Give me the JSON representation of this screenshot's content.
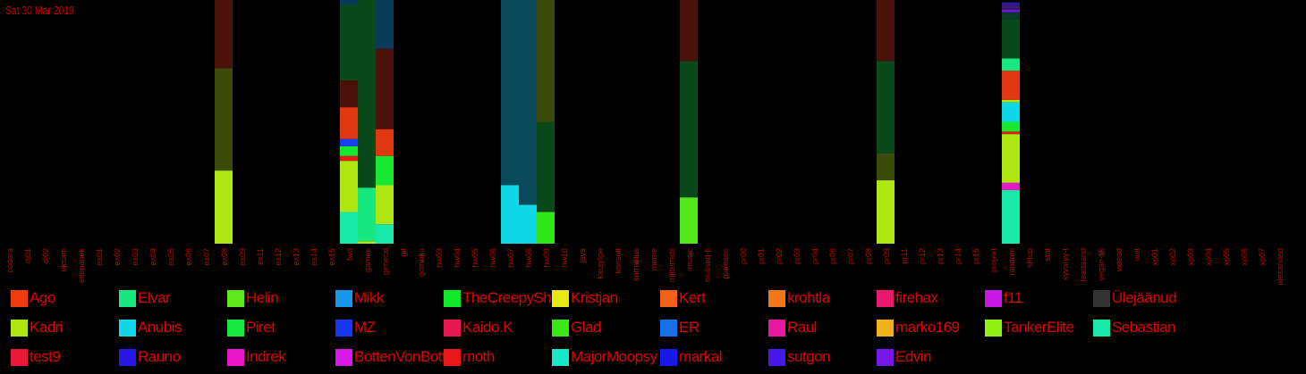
{
  "date_label": "Sat 30 Mar 2019",
  "chart_data": {
    "type": "bar",
    "stacked": true,
    "categories": [
      "codera",
      "dj01",
      "dj02",
      "eksam",
      "eltepanek",
      "ex01",
      "ex02",
      "ex03",
      "ex04",
      "ex05",
      "ex06",
      "ex07",
      "ex08",
      "ex09",
      "ex11",
      "ex12",
      "ex13",
      "ex14",
      "ex15",
      "fwd",
      "games",
      "general",
      "git",
      "gomoku",
      "hw03",
      "hw04",
      "hw05",
      "hw06",
      "hw07",
      "hw08",
      "hw09",
      "hw10",
      "java",
      "kaugõpe",
      "konsult",
      "korraldus",
      "meme",
      "mittemidii",
      "music",
      "olulised-fi",
      "palmaeri",
      "pr00",
      "pr01",
      "pr02",
      "pr03",
      "pr04",
      "pr06",
      "pr07",
      "pr08",
      "pr09",
      "pr11",
      "pr12",
      "pr13",
      "pr14",
      "pr15",
      "projekt",
      "random",
      "setup",
      "stat",
      "syvaryy-t",
      "teadaand",
      "vegan-tik",
      "videod",
      "wat",
      "xp01",
      "xp02",
      "xp03",
      "xp04",
      "xp05",
      "xp06",
      "xp07",
      "ülesanded"
    ],
    "ylim": [
      0,
      100
    ],
    "bars": [
      {
        "category": "ex08",
        "segments": [
          {
            "c": "#aee612",
            "v": 30
          },
          {
            "c": "#3c4a0a",
            "v": 42
          },
          {
            "c": "#4a1208",
            "v": 28
          }
        ]
      },
      {
        "category": "fwd",
        "segments": [
          {
            "c": "#18e8a8",
            "v": 13
          },
          {
            "c": "#aee612",
            "v": 21
          },
          {
            "c": "#e81818",
            "v": 2
          },
          {
            "c": "#18e830",
            "v": 4
          },
          {
            "c": "#1840f0",
            "v": 3
          },
          {
            "c": "#e03810",
            "v": 13
          },
          {
            "c": "#4a1208",
            "v": 11
          },
          {
            "c": "#0a4a1a",
            "v": 31
          },
          {
            "c": "#0a3a5a",
            "v": 2
          }
        ]
      },
      {
        "category": "games",
        "segments": [
          {
            "c": "#aee612",
            "v": 1
          },
          {
            "c": "#18e880",
            "v": 22
          },
          {
            "c": "#0a4a1a",
            "v": 77
          }
        ]
      },
      {
        "category": "general",
        "segments": [
          {
            "c": "#18e8a8",
            "v": 8
          },
          {
            "c": "#aee612",
            "v": 16
          },
          {
            "c": "#18e830",
            "v": 12
          },
          {
            "c": "#e03810",
            "v": 11
          },
          {
            "c": "#4a1208",
            "v": 33
          },
          {
            "c": "#0a3a5a",
            "v": 20
          }
        ]
      },
      {
        "category": "hw07",
        "segments": [
          {
            "c": "#10d8e8",
            "v": 24
          },
          {
            "c": "#0a4a5a",
            "v": 76
          }
        ]
      },
      {
        "category": "hw08",
        "segments": [
          {
            "c": "#10d8e8",
            "v": 16
          },
          {
            "c": "#0a4a5a",
            "v": 84
          }
        ]
      },
      {
        "category": "hw09",
        "segments": [
          {
            "c": "#30e818",
            "v": 13
          },
          {
            "c": "#0a4a1a",
            "v": 37
          },
          {
            "c": "#3c4a0a",
            "v": 50
          }
        ]
      },
      {
        "category": "music",
        "segments": [
          {
            "c": "#50e818",
            "v": 19
          },
          {
            "c": "#0a4a1a",
            "v": 56
          },
          {
            "c": "#4a1208",
            "v": 25
          }
        ]
      },
      {
        "category": "pr09",
        "segments": [
          {
            "c": "#aee612",
            "v": 26
          },
          {
            "c": "#3c4a0a",
            "v": 11
          },
          {
            "c": "#0a4a1a",
            "v": 38
          },
          {
            "c": "#4a1208",
            "v": 25
          }
        ]
      },
      {
        "category": "random",
        "segments": [
          {
            "c": "#18e8a8",
            "v": 22
          },
          {
            "c": "#e818c8",
            "v": 3
          },
          {
            "c": "#aee612",
            "v": 20
          },
          {
            "c": "#e81818",
            "v": 1
          },
          {
            "c": "#18e830",
            "v": 4
          },
          {
            "c": "#10d8e8",
            "v": 8
          },
          {
            "c": "#aee612",
            "v": 1
          },
          {
            "c": "#e03810",
            "v": 12
          },
          {
            "c": "#18e880",
            "v": 5
          },
          {
            "c": "#0a4a1a",
            "v": 16
          },
          {
            "c": "#0a3a2a",
            "v": 3
          },
          {
            "c": "#6a18d8",
            "v": 1
          },
          {
            "c": "#3a1a6a",
            "v": 2
          },
          {
            "c": "#2a1aa8",
            "v": 1
          }
        ]
      }
    ]
  },
  "legend": [
    {
      "name": "Ago",
      "color": "#f03a10"
    },
    {
      "name": "Elvar",
      "color": "#18e880"
    },
    {
      "name": "Helin",
      "color": "#60e818"
    },
    {
      "name": "Mikk",
      "color": "#1898e8"
    },
    {
      "name": "TheCreepyShot",
      "color": "#10e828"
    },
    {
      "name": "Kristjan",
      "color": "#e8e818"
    },
    {
      "name": "Kert",
      "color": "#f06018"
    },
    {
      "name": "krohtla",
      "color": "#f07818"
    },
    {
      "name": "firehax",
      "color": "#e8186a"
    },
    {
      "name": "f11",
      "color": "#c818e8"
    },
    {
      "name": "Ülejäänud",
      "color": "#333333"
    },
    {
      "name": "Kadri",
      "color": "#aee612"
    },
    {
      "name": "Anubis",
      "color": "#10d8e8"
    },
    {
      "name": "Piret",
      "color": "#18e840"
    },
    {
      "name": "MZ",
      "color": "#1838f0"
    },
    {
      "name": "Kaido.K",
      "color": "#e81850"
    },
    {
      "name": "Glad",
      "color": "#38e818"
    },
    {
      "name": "ER",
      "color": "#1870e8"
    },
    {
      "name": "Raul",
      "color": "#e818a0"
    },
    {
      "name": "marko169",
      "color": "#f0b018"
    },
    {
      "name": "TankerElite",
      "color": "#90f018"
    },
    {
      "name": "Sebastian",
      "color": "#18e8a8"
    },
    {
      "name": "test9",
      "color": "#e81838"
    },
    {
      "name": "Rauno",
      "color": "#2818e8"
    },
    {
      "name": "Indrek",
      "color": "#e818c8"
    },
    {
      "name": "BottenVonBott",
      "color": "#d818e8"
    },
    {
      "name": "moth",
      "color": "#e81818"
    },
    {
      "name": "MajorMoopsy",
      "color": "#18e8c8"
    },
    {
      "name": "markal",
      "color": "#1818e8"
    },
    {
      "name": "sutgon",
      "color": "#4818e8"
    },
    {
      "name": "Edvin",
      "color": "#7818e8"
    }
  ]
}
